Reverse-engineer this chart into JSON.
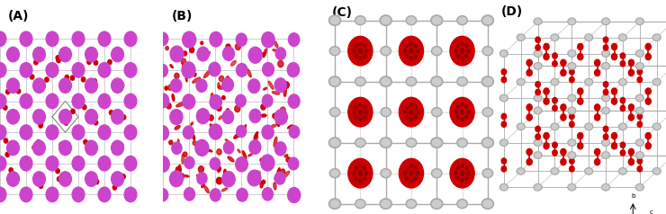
{
  "panels": [
    "(A)",
    "(B)",
    "(C)",
    "(D)"
  ],
  "bg_color": "#ffffff",
  "label_fontsize": 10,
  "label_color": "#000000",
  "magenta_color": "#cc44cc",
  "red_color": "#cc0000",
  "grey_color": "#aaaaaa",
  "grey_light": "#cccccc",
  "dark_grey": "#888888",
  "bond_color": "#bbbbbb"
}
